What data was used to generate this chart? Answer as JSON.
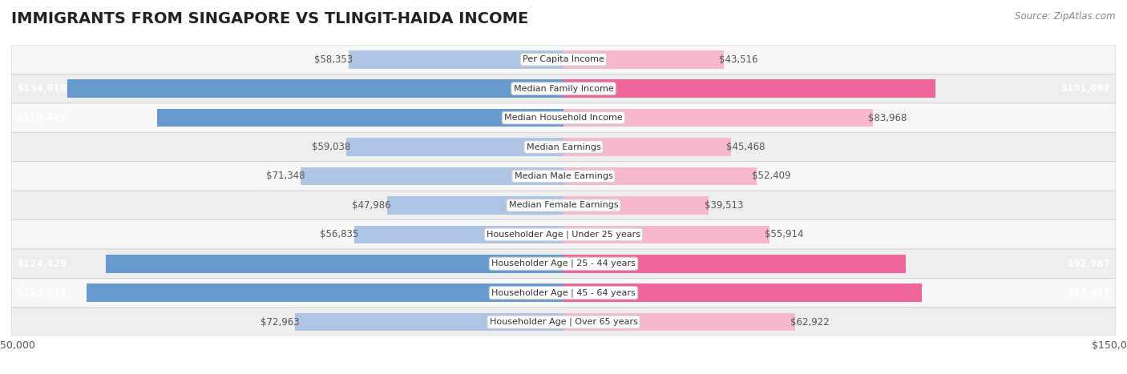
{
  "title": "IMMIGRANTS FROM SINGAPORE VS TLINGIT-HAIDA INCOME",
  "source": "Source: ZipAtlas.com",
  "categories": [
    "Per Capita Income",
    "Median Family Income",
    "Median Household Income",
    "Median Earnings",
    "Median Male Earnings",
    "Median Female Earnings",
    "Householder Age | Under 25 years",
    "Householder Age | 25 - 44 years",
    "Householder Age | 45 - 64 years",
    "Householder Age | Over 65 years"
  ],
  "singapore_values": [
    58353,
    134818,
    110428,
    59038,
    71348,
    47986,
    56835,
    124429,
    129514,
    72963
  ],
  "tlingit_values": [
    43516,
    101092,
    83968,
    45468,
    52409,
    39513,
    55914,
    92987,
    97417,
    62922
  ],
  "max_value": 150000,
  "singapore_color_light": "#adc4e3",
  "singapore_color_dark": "#6699cc",
  "tlingit_color_light": "#f7b8ce",
  "tlingit_color_dark": "#ee6699",
  "label_color_dark": "#555555",
  "row_bg_colors": [
    "#f7f7f7",
    "#eeeeee"
  ],
  "bar_height": 0.62,
  "inside_label_threshold": 90000,
  "legend_singapore": "Immigrants from Singapore",
  "legend_tlingit": "Tlingit-Haida",
  "title_fontsize": 14,
  "label_fontsize": 8.5,
  "cat_fontsize": 8.0
}
